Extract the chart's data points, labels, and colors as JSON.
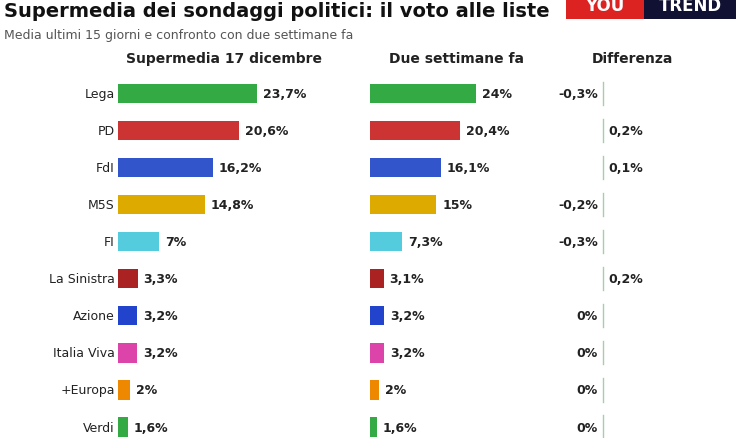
{
  "title": "Supermedia dei sondaggi politici: il voto alle liste",
  "subtitle": "Media ultimi 15 giorni e confronto con due settimane fa",
  "col1_header": "Supermedia 17 dicembre",
  "col2_header": "Due settimane fa",
  "col3_header": "Differenza",
  "parties": [
    "Lega",
    "PD",
    "FdI",
    "M5S",
    "FI",
    "La Sinistra",
    "Azione",
    "Italia Viva",
    "+Europa",
    "Verdi"
  ],
  "values1": [
    23.7,
    20.6,
    16.2,
    14.8,
    7.0,
    3.3,
    3.2,
    3.2,
    2.0,
    1.6
  ],
  "labels1": [
    "23,7%",
    "20,6%",
    "16,2%",
    "14,8%",
    "7%",
    "3,3%",
    "3,2%",
    "3,2%",
    "2%",
    "1,6%"
  ],
  "values2": [
    24.0,
    20.4,
    16.1,
    15.0,
    7.3,
    3.1,
    3.2,
    3.2,
    2.0,
    1.6
  ],
  "labels2": [
    "24%",
    "20,4%",
    "16,1%",
    "15%",
    "7,3%",
    "3,1%",
    "3,2%",
    "3,2%",
    "2%",
    "1,6%"
  ],
  "diff_labels": [
    "-0,3%",
    "0,2%",
    "0,1%",
    "-0,2%",
    "-0,3%",
    "0,2%",
    "0%",
    "0%",
    "0%",
    "0%"
  ],
  "diff_sign": [
    -1,
    1,
    1,
    -1,
    -1,
    1,
    0,
    0,
    0,
    0
  ],
  "colors": [
    "#33aa44",
    "#cc3333",
    "#3355cc",
    "#ddaa00",
    "#55ccdd",
    "#aa2222",
    "#2244cc",
    "#dd44aa",
    "#ee8800",
    "#33aa44"
  ],
  "bg_color": "#ffffff",
  "max_bar": 26,
  "label_fontsize": 9,
  "header_fontsize": 10,
  "title_fontsize": 14,
  "subtitle_fontsize": 9
}
